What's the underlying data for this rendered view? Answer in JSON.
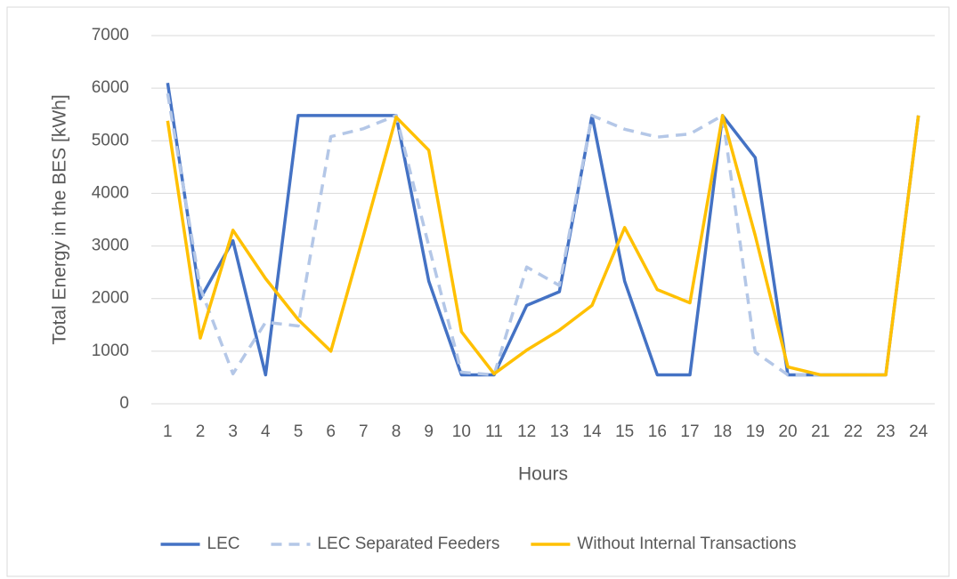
{
  "chart_data": {
    "type": "line",
    "y_label": "Total Energy in the BES [kWh]",
    "x_label": "Hours",
    "categories": [
      "1",
      "2",
      "3",
      "4",
      "5",
      "6",
      "7",
      "8",
      "9",
      "10",
      "11",
      "12",
      "13",
      "14",
      "15",
      "16",
      "17",
      "18",
      "19",
      "20",
      "21",
      "22",
      "23",
      "24"
    ],
    "series": [
      {
        "name": "LEC",
        "color": "#4472c4",
        "dashed": false,
        "values": [
          6100,
          2000,
          3100,
          550,
          5480,
          5480,
          5480,
          5480,
          2330,
          550,
          550,
          1870,
          2130,
          5480,
          2330,
          550,
          550,
          5480,
          4680,
          550,
          550,
          550,
          550,
          5480
        ]
      },
      {
        "name": "LEC Separated Feeders",
        "color": "#b4c7e7",
        "dashed": true,
        "values": [
          5900,
          2200,
          570,
          1550,
          1480,
          5080,
          5230,
          5480,
          3000,
          600,
          550,
          2600,
          2250,
          5480,
          5220,
          5070,
          5130,
          5480,
          980,
          550,
          550,
          550,
          550,
          5480
        ]
      },
      {
        "name": "Without Internal Transactions",
        "color": "#ffc000",
        "dashed": false,
        "values": [
          5380,
          1250,
          3300,
          2380,
          1600,
          1000,
          3200,
          5450,
          4820,
          1370,
          570,
          1020,
          1400,
          1870,
          3350,
          2170,
          1920,
          5480,
          3200,
          700,
          550,
          550,
          550,
          5480
        ]
      }
    ],
    "ylim": [
      0,
      7000
    ],
    "yticks": [
      0,
      1000,
      2000,
      3000,
      4000,
      5000,
      6000,
      7000
    ],
    "grid": true,
    "legend": "bottom"
  }
}
